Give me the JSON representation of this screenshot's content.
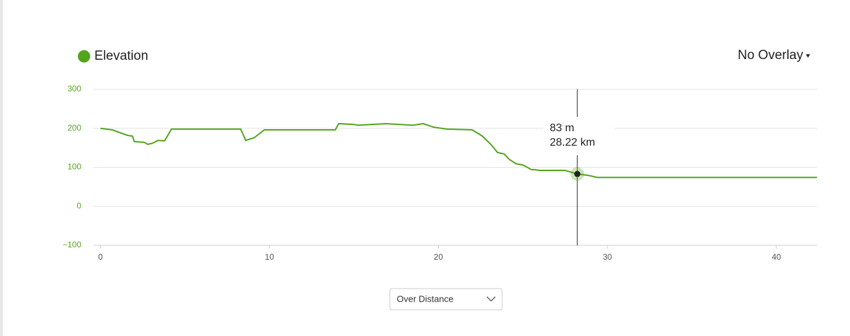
{
  "chart_data": {
    "type": "line",
    "x": [
      0,
      0.7,
      1.6,
      1.9,
      2.0,
      2.6,
      2.8,
      3.1,
      3.4,
      3.8,
      4.2,
      8.3,
      8.6,
      9.1,
      9.7,
      13.9,
      14.1,
      15.0,
      15.2,
      16.9,
      18.5,
      19.1,
      19.7,
      20.5,
      22.0,
      22.6,
      23.1,
      23.5,
      23.9,
      24.2,
      24.6,
      25.0,
      25.3,
      25.5,
      25.7,
      26.0,
      27.5,
      28.22,
      28.9,
      29.4,
      42.4
    ],
    "series": [
      {
        "name": "Elevation",
        "color": "#52a51c",
        "values": [
          200,
          196,
          182,
          180,
          166,
          164,
          159,
          162,
          169,
          168,
          198,
          198,
          169,
          176,
          196,
          196,
          212,
          210,
          208,
          212,
          208,
          212,
          203,
          198,
          196,
          180,
          159,
          138,
          134,
          120,
          109,
          106,
          99,
          94,
          94,
          92,
          92,
          83,
          79,
          74,
          74
        ]
      }
    ],
    "xlim": [
      -0.4,
      42.4
    ],
    "xticks": [
      0,
      10,
      20,
      30,
      40
    ],
    "ylim": [
      -100,
      300
    ],
    "yticks": [
      {
        "value": -100,
        "label": "−100"
      },
      0,
      100,
      200,
      300
    ],
    "grid": true,
    "hover": {
      "x": 28.22,
      "y": 83,
      "labels": [
        "83 m",
        "28.22 km"
      ]
    }
  },
  "controls": {
    "overlay": "No Overlay",
    "x_mode": "Over Distance"
  }
}
